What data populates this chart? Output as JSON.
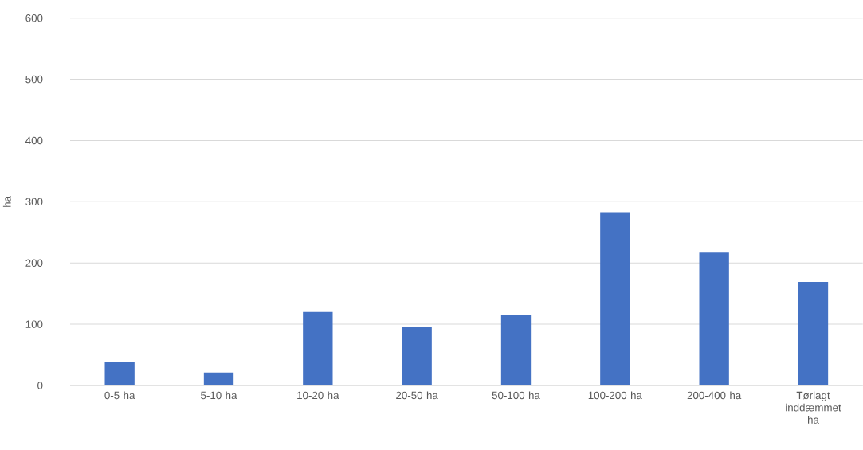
{
  "chart_data": {
    "type": "bar",
    "ylabel": "ha",
    "categories": [
      "0-5 ha",
      "5-10 ha",
      "10-20 ha",
      "20-50 ha",
      "50-100 ha",
      "100-200 ha",
      "200-400 ha",
      "Tørlagt inddæmmet ha"
    ],
    "values": [
      38,
      21,
      120,
      96,
      115,
      283,
      217,
      169
    ],
    "color": "#4472c4",
    "ylim": [
      0,
      600
    ],
    "yticks": [
      0,
      100,
      200,
      300,
      400,
      500,
      600
    ],
    "grid": "y"
  }
}
